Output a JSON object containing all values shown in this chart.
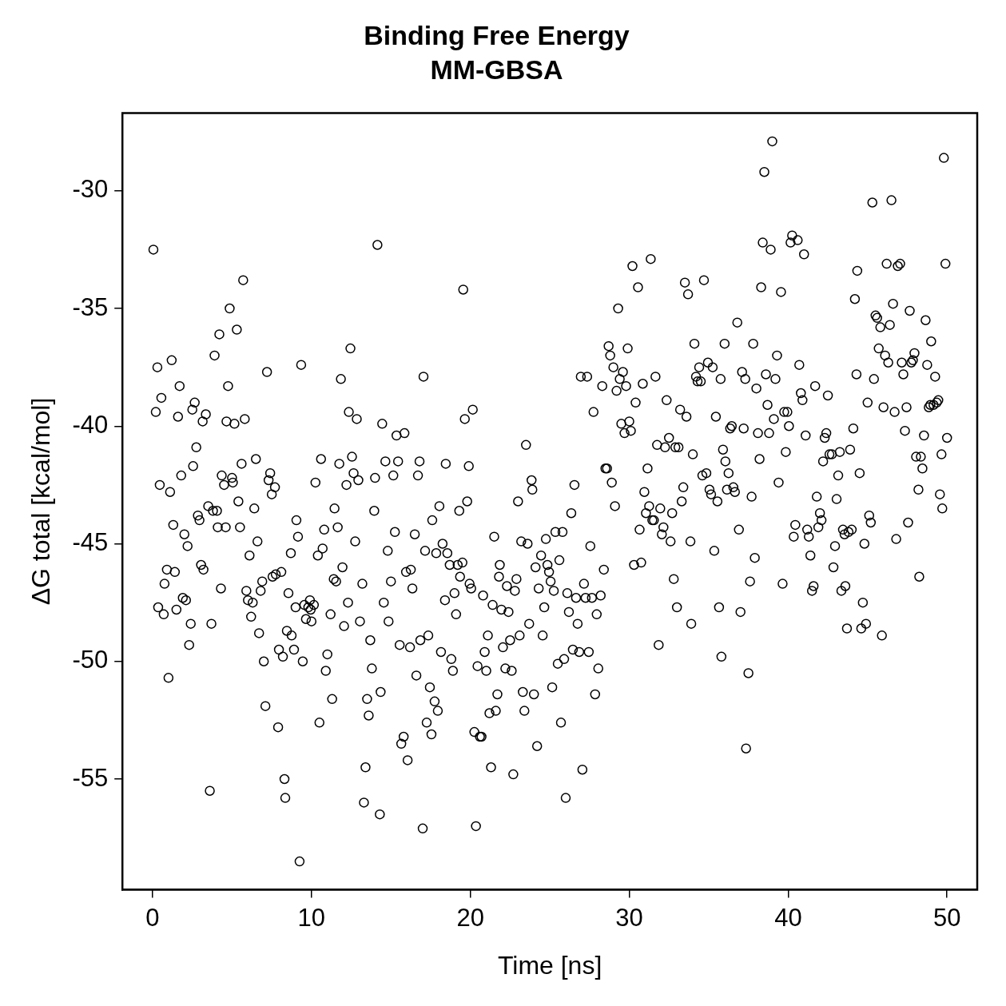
{
  "chart_data": {
    "type": "scatter",
    "title": "Binding Free Energy",
    "subtitle": "MM-GBSA",
    "xlabel": "Time [ns]",
    "ylabel": "ΔG total [kcal/mol]",
    "xlim": [
      -1.9,
      51.9
    ],
    "ylim": [
      -59.7,
      -26.7
    ],
    "xticks": [
      0,
      10,
      20,
      30,
      40,
      50
    ],
    "yticks": [
      -55,
      -50,
      -45,
      -40,
      -35,
      -30
    ],
    "grid": false,
    "marker": "circle",
    "series": [
      {
        "color": "#000000",
        "x": [
          0.05,
          0.2,
          0.3,
          0.35,
          0.45,
          0.55,
          0.7,
          0.75,
          0.9,
          1.0,
          1.1,
          1.2,
          1.3,
          1.4,
          1.5,
          1.6,
          1.7,
          1.8,
          1.9,
          2.0,
          2.1,
          2.2,
          2.3,
          2.4,
          2.5,
          2.55,
          2.65,
          2.75,
          2.85,
          2.95,
          3.05,
          3.15,
          3.2,
          3.35,
          3.5,
          3.6,
          3.7,
          3.8,
          3.9,
          4.05,
          4.1,
          4.2,
          4.3,
          4.35,
          4.5,
          4.6,
          4.65,
          4.75,
          4.85,
          5.0,
          5.05,
          5.15,
          5.3,
          5.4,
          5.5,
          5.6,
          5.7,
          5.8,
          5.9,
          6.0,
          6.1,
          6.2,
          6.3,
          6.4,
          6.5,
          6.6,
          6.7,
          6.8,
          6.9,
          7.0,
          7.1,
          7.2,
          7.3,
          7.4,
          7.5,
          7.55,
          7.7,
          7.75,
          7.9,
          7.95,
          8.1,
          8.2,
          8.3,
          8.35,
          8.45,
          8.55,
          8.7,
          8.75,
          8.9,
          9.0,
          9.05,
          9.15,
          9.25,
          9.35,
          9.45,
          9.55,
          9.65,
          9.8,
          9.9,
          9.95,
          10.0,
          10.15,
          10.25,
          10.4,
          10.5,
          10.6,
          10.7,
          10.8,
          10.9,
          11.0,
          11.2,
          11.3,
          11.4,
          11.45,
          11.55,
          11.65,
          11.75,
          11.85,
          11.95,
          12.05,
          12.2,
          12.3,
          12.35,
          12.45,
          12.55,
          12.65,
          12.75,
          12.85,
          12.95,
          13.05,
          13.2,
          13.3,
          13.4,
          13.5,
          13.6,
          13.7,
          13.8,
          13.95,
          14.0,
          14.15,
          14.3,
          14.35,
          14.45,
          14.55,
          14.65,
          14.8,
          14.85,
          15.0,
          15.15,
          15.25,
          15.35,
          15.45,
          15.55,
          15.65,
          15.8,
          15.85,
          15.95,
          16.05,
          16.2,
          16.25,
          16.35,
          16.5,
          16.6,
          16.7,
          16.8,
          16.85,
          17.0,
          17.05,
          17.15,
          17.25,
          17.35,
          17.45,
          17.55,
          17.6,
          17.75,
          17.85,
          17.95,
          18.05,
          18.15,
          18.25,
          18.4,
          18.45,
          18.55,
          18.7,
          18.8,
          18.9,
          19.0,
          19.1,
          19.2,
          19.3,
          19.35,
          19.5,
          19.55,
          19.65,
          19.8,
          19.9,
          19.95,
          20.05,
          20.15,
          20.25,
          20.35,
          20.45,
          20.6,
          20.7,
          20.8,
          20.9,
          21.0,
          21.1,
          21.2,
          21.3,
          21.4,
          21.5,
          21.6,
          21.7,
          21.8,
          21.85,
          21.95,
          22.05,
          22.2,
          22.3,
          22.4,
          22.5,
          22.6,
          22.7,
          22.8,
          22.9,
          23.0,
          23.1,
          23.2,
          23.3,
          23.4,
          23.5,
          23.6,
          23.7,
          23.85,
          23.9,
          24.0,
          24.1,
          24.2,
          24.3,
          24.45,
          24.55,
          24.65,
          24.75,
          24.85,
          24.95,
          25.05,
          25.15,
          25.25,
          25.35,
          25.5,
          25.6,
          25.7,
          25.8,
          25.9,
          26.0,
          26.1,
          26.2,
          26.35,
          26.45,
          26.55,
          26.65,
          26.75,
          26.85,
          26.95,
          27.05,
          27.15,
          27.25,
          27.35,
          27.45,
          27.55,
          27.65,
          27.75,
          27.85,
          27.95,
          28.05,
          28.2,
          28.3,
          28.4,
          28.5,
          28.6,
          28.7,
          28.8,
          28.9,
          29.0,
          29.1,
          29.2,
          29.3,
          29.4,
          29.5,
          29.6,
          29.7,
          29.8,
          29.9,
          30.0,
          30.1,
          30.2,
          30.3,
          30.4,
          30.55,
          30.65,
          30.75,
          30.85,
          30.95,
          31.05,
          31.15,
          31.25,
          31.35,
          31.45,
          31.55,
          31.65,
          31.75,
          31.85,
          31.95,
          32.05,
          32.15,
          32.25,
          32.35,
          32.5,
          32.6,
          32.7,
          32.8,
          32.9,
          33.0,
          33.1,
          33.2,
          33.3,
          33.4,
          33.5,
          33.6,
          33.7,
          33.85,
          33.9,
          34.0,
          34.1,
          34.2,
          34.3,
          34.4,
          34.5,
          34.6,
          34.7,
          34.85,
          34.95,
          35.05,
          35.15,
          35.25,
          35.35,
          35.45,
          35.55,
          35.65,
          35.75,
          35.8,
          35.9,
          36.0,
          36.05,
          36.15,
          36.25,
          36.35,
          36.45,
          36.55,
          36.65,
          36.8,
          36.9,
          37.0,
          37.1,
          37.2,
          37.3,
          37.35,
          37.5,
          37.6,
          37.7,
          37.8,
          37.9,
          38.0,
          38.1,
          38.2,
          38.3,
          38.4,
          38.5,
          38.6,
          38.7,
          38.8,
          38.9,
          39.0,
          39.1,
          39.2,
          39.3,
          39.4,
          39.55,
          39.65,
          39.75,
          39.85,
          39.95,
          40.05,
          40.15,
          40.25,
          40.35,
          40.45,
          40.6,
          40.7,
          40.8,
          40.9,
          41.0,
          41.1,
          41.2,
          41.3,
          41.4,
          41.5,
          41.6,
          41.7,
          41.8,
          41.9,
          42.0,
          42.1,
          42.2,
          42.3,
          42.4,
          42.5,
          42.6,
          42.75,
          42.85,
          42.95,
          43.05,
          43.15,
          43.25,
          43.35,
          43.45,
          43.55,
          43.6,
          43.7,
          43.8,
          43.9,
          44.0,
          44.1,
          44.2,
          44.3,
          44.35,
          44.5,
          44.6,
          44.7,
          44.8,
          44.9,
          45.0,
          45.1,
          45.2,
          45.3,
          45.4,
          45.5,
          45.6,
          45.7,
          45.8,
          45.9,
          46.0,
          46.1,
          46.2,
          46.3,
          46.4,
          46.5,
          46.6,
          46.7,
          46.8,
          46.9,
          47.05,
          47.15,
          47.25,
          47.35,
          47.45,
          47.55,
          47.65,
          47.75,
          47.85,
          47.95,
          48.05,
          48.2,
          48.25,
          48.35,
          48.45,
          48.55,
          48.65,
          48.75,
          48.85,
          48.95,
          49.0,
          49.15,
          49.25,
          49.35,
          49.45,
          49.55,
          49.65,
          49.7,
          49.8,
          49.9,
          50.0
        ],
        "values": [
          -32.5,
          -39.4,
          -37.5,
          -47.7,
          -42.5,
          -38.8,
          -48.0,
          -46.7,
          -46.1,
          -50.7,
          -42.8,
          -37.2,
          -44.2,
          -46.2,
          -47.8,
          -39.6,
          -38.3,
          -42.1,
          -47.3,
          -44.6,
          -47.4,
          -45.1,
          -49.3,
          -48.4,
          -39.3,
          -41.7,
          -39.0,
          -40.9,
          -43.8,
          -44.0,
          -45.9,
          -39.8,
          -46.1,
          -39.5,
          -43.4,
          -55.5,
          -48.4,
          -43.6,
          -37.0,
          -43.6,
          -44.3,
          -36.1,
          -46.9,
          -42.1,
          -42.5,
          -44.3,
          -39.8,
          -38.3,
          -35.0,
          -42.2,
          -42.4,
          -39.9,
          -35.9,
          -43.2,
          -44.3,
          -41.6,
          -33.8,
          -39.7,
          -47.0,
          -47.4,
          -45.5,
          -48.1,
          -47.5,
          -43.5,
          -41.4,
          -44.9,
          -48.8,
          -47.0,
          -46.6,
          -50.0,
          -51.9,
          -37.7,
          -42.3,
          -42.0,
          -42.9,
          -46.4,
          -42.6,
          -46.3,
          -52.8,
          -49.5,
          -46.2,
          -49.8,
          -55.0,
          -55.8,
          -48.7,
          -47.1,
          -45.4,
          -48.9,
          -49.5,
          -47.7,
          -44.0,
          -44.7,
          -58.5,
          -37.4,
          -50.0,
          -47.6,
          -48.2,
          -47.7,
          -47.4,
          -47.8,
          -48.3,
          -47.6,
          -42.4,
          -45.5,
          -52.6,
          -41.4,
          -45.2,
          -44.4,
          -50.4,
          -49.7,
          -48.0,
          -51.6,
          -46.5,
          -43.5,
          -46.6,
          -44.3,
          -41.6,
          -38.0,
          -46.0,
          -48.5,
          -42.5,
          -47.5,
          -39.4,
          -36.7,
          -41.3,
          -42.0,
          -44.9,
          -39.7,
          -42.3,
          -48.3,
          -46.7,
          -56.0,
          -54.5,
          -51.6,
          -52.3,
          -49.1,
          -50.3,
          -43.6,
          -42.2,
          -32.3,
          -56.5,
          -51.3,
          -39.9,
          -47.5,
          -41.5,
          -45.3,
          -48.3,
          -46.6,
          -42.1,
          -44.5,
          -40.4,
          -41.5,
          -49.3,
          -53.5,
          -53.2,
          -40.3,
          -46.2,
          -54.2,
          -49.4,
          -46.1,
          -46.9,
          -44.6,
          -50.6,
          -42.1,
          -41.5,
          -49.1,
          -57.1,
          -37.9,
          -45.3,
          -52.6,
          -48.9,
          -51.1,
          -53.1,
          -44.0,
          -51.7,
          -45.4,
          -52.1,
          -43.4,
          -49.6,
          -45.0,
          -47.4,
          -41.6,
          -45.4,
          -45.9,
          -49.9,
          -50.4,
          -47.1,
          -48.0,
          -45.9,
          -43.6,
          -46.4,
          -45.8,
          -34.2,
          -39.7,
          -43.2,
          -41.7,
          -46.7,
          -46.9,
          -39.3,
          -53.0,
          -57.0,
          -50.2,
          -53.2,
          -53.2,
          -47.2,
          -49.6,
          -50.4,
          -48.9,
          -52.2,
          -54.5,
          -47.6,
          -44.7,
          -52.1,
          -51.4,
          -46.4,
          -45.9,
          -47.8,
          -49.4,
          -50.3,
          -46.8,
          -47.9,
          -49.1,
          -50.4,
          -54.8,
          -47.0,
          -46.5,
          -43.2,
          -48.9,
          -44.9,
          -51.3,
          -52.1,
          -40.8,
          -45.0,
          -48.4,
          -42.3,
          -42.7,
          -51.4,
          -46.0,
          -53.6,
          -46.9,
          -45.5,
          -48.9,
          -47.7,
          -44.8,
          -45.9,
          -46.2,
          -46.6,
          -51.1,
          -47.0,
          -44.5,
          -50.1,
          -45.7,
          -52.6,
          -44.5,
          -49.9,
          -55.8,
          -47.1,
          -47.9,
          -43.7,
          -49.5,
          -42.5,
          -47.3,
          -48.4,
          -49.6,
          -37.9,
          -54.6,
          -46.7,
          -47.3,
          -37.9,
          -49.6,
          -45.1,
          -47.3,
          -39.4,
          -51.4,
          -48.0,
          -50.3,
          -47.2,
          -38.3,
          -46.1,
          -41.8,
          -41.8,
          -36.6,
          -37.0,
          -42.4,
          -37.5,
          -43.4,
          -38.5,
          -35.0,
          -38.0,
          -39.9,
          -37.7,
          -40.3,
          -38.3,
          -36.7,
          -39.8,
          -40.2,
          -33.2,
          -45.9,
          -39.0,
          -34.1,
          -44.4,
          -45.8,
          -38.2,
          -42.8,
          -43.7,
          -41.8,
          -43.4,
          -32.9,
          -44.0,
          -44.0,
          -37.9,
          -40.8,
          -49.3,
          -43.5,
          -44.6,
          -44.3,
          -40.9,
          -38.9,
          -40.5,
          -44.9,
          -43.7,
          -46.5,
          -40.9,
          -47.7,
          -40.9,
          -39.3,
          -43.2,
          -42.6,
          -33.9,
          -39.6,
          -34.4,
          -44.9,
          -48.4,
          -41.2,
          -36.5,
          -37.9,
          -38.1,
          -37.5,
          -38.1,
          -42.1,
          -33.8,
          -42.0,
          -37.3,
          -42.7,
          -42.9,
          -37.5,
          -45.3,
          -39.6,
          -43.2,
          -47.7,
          -38.0,
          -49.8,
          -41.0,
          -36.5,
          -41.5,
          -42.7,
          -42.0,
          -40.1,
          -40.0,
          -42.6,
          -42.8,
          -35.6,
          -44.4,
          -47.9,
          -37.7,
          -40.1,
          -38.0,
          -53.7,
          -50.5,
          -46.6,
          -43.0,
          -36.5,
          -45.6,
          -38.4,
          -40.3,
          -41.4,
          -34.1,
          -32.2,
          -29.2,
          -37.8,
          -39.1,
          -40.3,
          -32.5,
          -27.9,
          -39.7,
          -38.0,
          -37.0,
          -42.4,
          -34.3,
          -46.7,
          -39.4,
          -41.1,
          -39.4,
          -40.0,
          -32.2,
          -31.9,
          -44.7,
          -44.2,
          -32.1,
          -37.4,
          -38.6,
          -38.9,
          -32.7,
          -40.4,
          -44.4,
          -44.7,
          -45.5,
          -47.0,
          -46.8,
          -38.3,
          -43.0,
          -44.3,
          -43.7,
          -44.0,
          -41.5,
          -40.5,
          -40.3,
          -38.7,
          -41.2,
          -41.2,
          -46.0,
          -45.1,
          -43.1,
          -42.1,
          -41.1,
          -47.0,
          -44.4,
          -44.6,
          -46.8,
          -48.6,
          -44.5,
          -41.0,
          -44.4,
          -40.1,
          -34.6,
          -37.8,
          -33.4,
          -42.0,
          -48.6,
          -47.5,
          -45.0,
          -48.4,
          -39.0,
          -43.8,
          -44.1,
          -30.5,
          -38.0,
          -35.3,
          -35.4,
          -36.7,
          -35.8,
          -48.9,
          -39.2,
          -37.0,
          -33.1,
          -37.3,
          -35.7,
          -30.4,
          -34.8,
          -39.4,
          -44.8,
          -33.2,
          -33.1,
          -37.3,
          -37.8,
          -40.2,
          -39.2,
          -44.1,
          -35.1,
          -37.3,
          -37.2,
          -36.9,
          -41.3,
          -42.7,
          -46.4,
          -41.3,
          -41.8,
          -40.4,
          -35.5,
          -37.4,
          -39.2,
          -39.1,
          -36.4,
          -39.1,
          -37.9,
          -39.0,
          -38.9,
          -42.9,
          -41.2,
          -43.5,
          -28.6,
          -33.1,
          -40.5
        ]
      }
    ]
  }
}
